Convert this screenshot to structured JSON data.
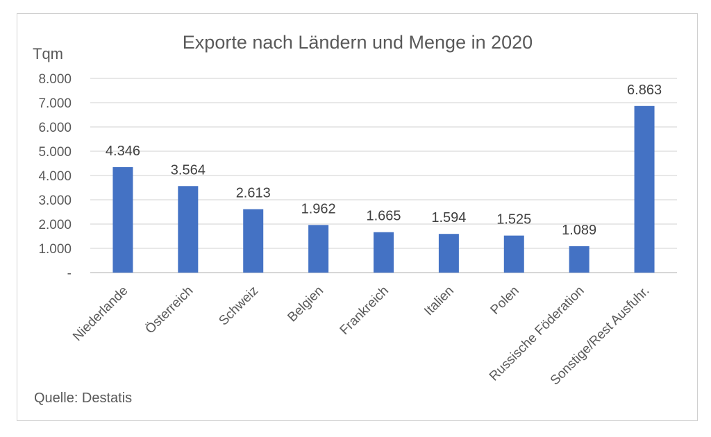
{
  "chart_data": {
    "type": "bar",
    "title": "Exporte nach Ländern und Menge in 2020",
    "ylabel": "Tqm",
    "xlabel": "",
    "categories": [
      "Niederlande",
      "Österreich",
      "Schweiz",
      "Belgien",
      "Frankreich",
      "Italien",
      "Polen",
      "Russische Föderation",
      "Sonstige/Rest Ausfuhr."
    ],
    "values": [
      4346,
      3564,
      2613,
      1962,
      1665,
      1594,
      1525,
      1089,
      6863
    ],
    "value_labels": [
      "4.346",
      "3.564",
      "2.613",
      "1.962",
      "1.665",
      "1.594",
      "1.525",
      "1.089",
      "6.863"
    ],
    "ylim": [
      0,
      8000
    ],
    "yticks": [
      0,
      1000,
      2000,
      3000,
      4000,
      5000,
      6000,
      7000,
      8000
    ],
    "ytick_labels": [
      "-",
      "1.000",
      "2.000",
      "3.000",
      "4.000",
      "5.000",
      "6.000",
      "7.000",
      "8.000"
    ],
    "bar_color": "#4472c4",
    "grid": true,
    "legend": "none"
  },
  "source": "Quelle: Destatis"
}
